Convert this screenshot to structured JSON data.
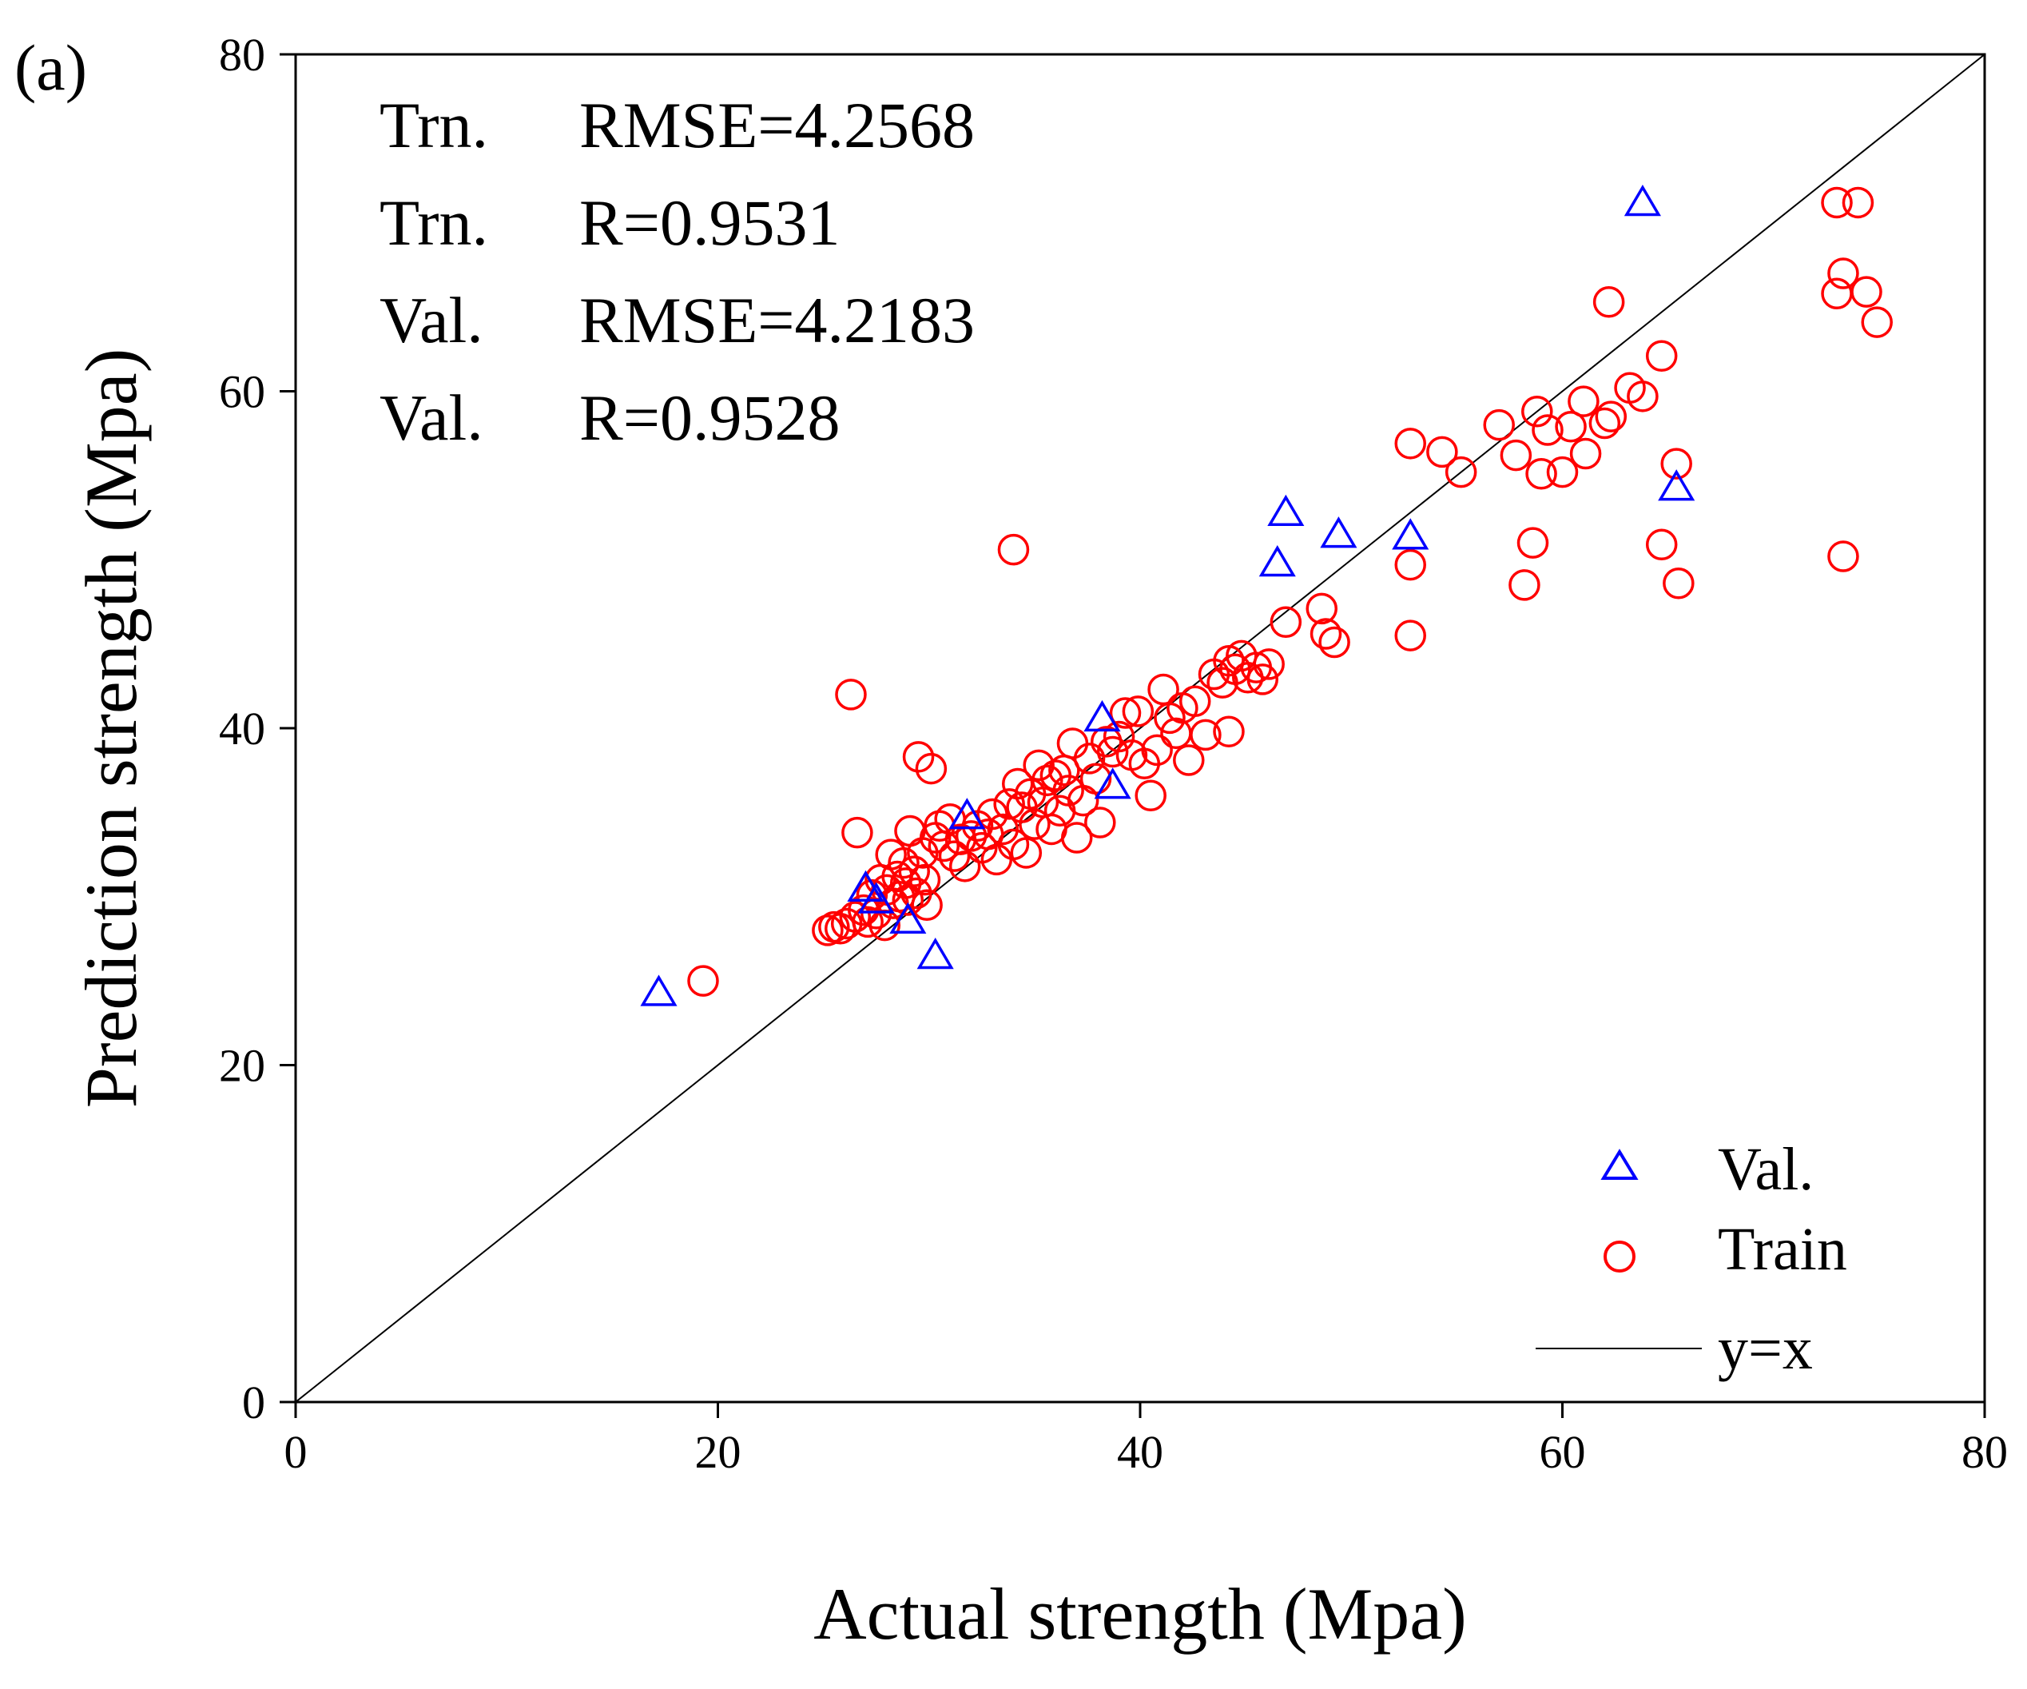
{
  "panel_label": "(a)",
  "annotations": [
    {
      "prefix": "Trn.",
      "stat": "RMSE=4.2568"
    },
    {
      "prefix": "Trn.",
      "stat": "R=0.9531"
    },
    {
      "prefix": "Val.",
      "stat": "RMSE=4.2183"
    },
    {
      "prefix": "Val.",
      "stat": "R=0.9528"
    }
  ],
  "legend": [
    {
      "label": "Val.",
      "marker": "triangle",
      "color": "#0000ff"
    },
    {
      "label": "Train",
      "marker": "circle",
      "color": "#ff0000"
    },
    {
      "label": "y=x",
      "marker": "line",
      "color": "#000000"
    }
  ],
  "chart_data": {
    "type": "scatter",
    "title": "",
    "xlabel": "Actual strength (Mpa)",
    "ylabel": "Prediction strength (Mpa)",
    "xlim": [
      0,
      80
    ],
    "ylim": [
      0,
      80
    ],
    "xticks": [
      0,
      20,
      40,
      60,
      80
    ],
    "yticks": [
      0,
      20,
      40,
      60,
      80
    ],
    "grid": false,
    "legend_position": "bottom-right",
    "reference_line": {
      "name": "y=x",
      "from": [
        0,
        0
      ],
      "to": [
        80,
        80
      ],
      "color": "#000000"
    },
    "series": [
      {
        "name": "Val.",
        "marker": "triangle",
        "color": "#0000ff",
        "points": [
          [
            17.2,
            24.3
          ],
          [
            27.0,
            30.5
          ],
          [
            27.5,
            29.8
          ],
          [
            29.0,
            28.6
          ],
          [
            30.3,
            26.5
          ],
          [
            31.8,
            34.8
          ],
          [
            38.2,
            40.6
          ],
          [
            38.7,
            36.6
          ],
          [
            46.5,
            49.8
          ],
          [
            46.9,
            52.8
          ],
          [
            49.4,
            51.5
          ],
          [
            52.8,
            51.4
          ],
          [
            63.8,
            71.2
          ],
          [
            65.4,
            54.3
          ]
        ]
      },
      {
        "name": "Train",
        "marker": "circle",
        "color": "#ff0000",
        "points": [
          [
            19.3,
            25.0
          ],
          [
            25.2,
            28.0
          ],
          [
            25.5,
            28.2
          ],
          [
            25.8,
            28.1
          ],
          [
            26.1,
            28.4
          ],
          [
            26.3,
            42.0
          ],
          [
            26.5,
            28.8
          ],
          [
            26.6,
            33.8
          ],
          [
            26.9,
            29.2
          ],
          [
            27.1,
            28.5
          ],
          [
            27.3,
            30.1
          ],
          [
            27.5,
            29.0
          ],
          [
            27.7,
            31.0
          ],
          [
            27.9,
            28.3
          ],
          [
            28.0,
            30.4
          ],
          [
            28.2,
            32.5
          ],
          [
            28.3,
            29.6
          ],
          [
            28.5,
            31.2
          ],
          [
            28.6,
            30.0
          ],
          [
            28.8,
            32.0
          ],
          [
            28.9,
            30.8
          ],
          [
            29.0,
            29.8
          ],
          [
            29.1,
            33.9
          ],
          [
            29.3,
            31.5
          ],
          [
            29.4,
            30.2
          ],
          [
            29.5,
            38.3
          ],
          [
            29.7,
            32.6
          ],
          [
            29.8,
            31.0
          ],
          [
            29.9,
            29.5
          ],
          [
            30.1,
            37.6
          ],
          [
            30.3,
            33.5
          ],
          [
            30.5,
            34.2
          ],
          [
            30.7,
            33.0
          ],
          [
            31.0,
            34.6
          ],
          [
            31.2,
            32.4
          ],
          [
            31.5,
            33.4
          ],
          [
            31.7,
            31.8
          ],
          [
            32.0,
            33.6
          ],
          [
            32.3,
            34.2
          ],
          [
            32.5,
            32.9
          ],
          [
            32.8,
            33.7
          ],
          [
            33.0,
            34.9
          ],
          [
            33.2,
            32.2
          ],
          [
            33.5,
            34.0
          ],
          [
            33.8,
            35.5
          ],
          [
            34.0,
            33.1
          ],
          [
            34.0,
            50.6
          ],
          [
            34.2,
            36.7
          ],
          [
            34.4,
            35.3
          ],
          [
            34.6,
            32.6
          ],
          [
            34.8,
            36.1
          ],
          [
            35.0,
            34.3
          ],
          [
            35.2,
            37.8
          ],
          [
            35.4,
            35.6
          ],
          [
            35.6,
            36.9
          ],
          [
            35.8,
            34.0
          ],
          [
            36.0,
            37.2
          ],
          [
            36.2,
            35.1
          ],
          [
            36.4,
            37.5
          ],
          [
            36.6,
            36.3
          ],
          [
            36.8,
            39.1
          ],
          [
            37.0,
            33.5
          ],
          [
            37.3,
            35.7
          ],
          [
            37.6,
            38.2
          ],
          [
            37.9,
            37.0
          ],
          [
            38.1,
            34.4
          ],
          [
            38.4,
            39.2
          ],
          [
            38.7,
            38.6
          ],
          [
            39.0,
            39.5
          ],
          [
            39.3,
            40.9
          ],
          [
            39.6,
            38.4
          ],
          [
            39.9,
            41.0
          ],
          [
            40.2,
            37.9
          ],
          [
            40.5,
            36.0
          ],
          [
            40.8,
            38.7
          ],
          [
            41.1,
            42.3
          ],
          [
            41.4,
            40.6
          ],
          [
            41.7,
            39.7
          ],
          [
            42.0,
            41.2
          ],
          [
            42.3,
            38.1
          ],
          [
            42.6,
            41.6
          ],
          [
            43.1,
            39.6
          ],
          [
            43.5,
            43.2
          ],
          [
            43.9,
            42.7
          ],
          [
            44.2,
            44.0
          ],
          [
            44.2,
            39.8
          ],
          [
            44.5,
            43.5
          ],
          [
            44.8,
            44.3
          ],
          [
            45.1,
            43.0
          ],
          [
            45.5,
            43.6
          ],
          [
            45.8,
            42.9
          ],
          [
            46.1,
            43.8
          ],
          [
            46.9,
            46.3
          ],
          [
            48.6,
            47.1
          ],
          [
            48.8,
            45.6
          ],
          [
            49.2,
            45.1
          ],
          [
            52.8,
            56.9
          ],
          [
            52.8,
            49.7
          ],
          [
            52.8,
            45.5
          ],
          [
            54.3,
            56.4
          ],
          [
            55.2,
            55.2
          ],
          [
            57.0,
            58.0
          ],
          [
            57.8,
            56.2
          ],
          [
            58.2,
            48.5
          ],
          [
            58.6,
            51.0
          ],
          [
            58.8,
            58.8
          ],
          [
            59.0,
            55.1
          ],
          [
            59.3,
            57.7
          ],
          [
            60.0,
            55.2
          ],
          [
            60.4,
            57.9
          ],
          [
            61.0,
            59.4
          ],
          [
            61.1,
            56.3
          ],
          [
            62.0,
            58.1
          ],
          [
            62.2,
            65.3
          ],
          [
            62.3,
            58.5
          ],
          [
            63.2,
            60.2
          ],
          [
            63.8,
            59.7
          ],
          [
            64.7,
            62.1
          ],
          [
            64.7,
            50.9
          ],
          [
            65.4,
            55.7
          ],
          [
            65.5,
            48.6
          ],
          [
            73.0,
            71.2
          ],
          [
            73.0,
            65.8
          ],
          [
            73.3,
            67.0
          ],
          [
            73.3,
            50.2
          ],
          [
            74.0,
            71.2
          ],
          [
            74.4,
            65.9
          ],
          [
            74.9,
            64.1
          ]
        ]
      }
    ]
  }
}
